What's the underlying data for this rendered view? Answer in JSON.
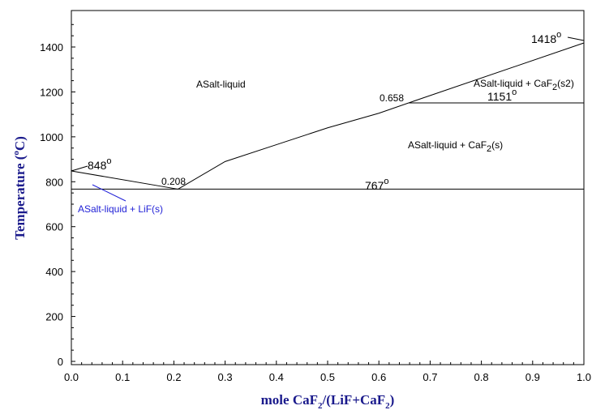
{
  "chart_data": {
    "type": "line",
    "xlabel": {
      "pre": "mole CaF",
      "sub1": "2",
      "mid": "/(LiF+CaF",
      "sub2": "2",
      "post": ")"
    },
    "ylabel": {
      "pre": "Temperature (",
      "sup": "o",
      "post": "C)"
    },
    "xlim": [
      0,
      1.0
    ],
    "ylim": [
      0,
      1500
    ],
    "x_ticks": [
      "0.0",
      "0.1",
      "0.2",
      "0.3",
      "0.4",
      "0.5",
      "0.6",
      "0.7",
      "0.8",
      "0.9",
      "1.0"
    ],
    "y_ticks": [
      "0",
      "200",
      "400",
      "600",
      "800",
      "1000",
      "1200",
      "1400"
    ],
    "grid": false,
    "series": [
      {
        "x": [
          0.0,
          0.208
        ],
        "y": [
          848,
          767
        ]
      },
      {
        "x": [
          0.208,
          0.3,
          0.4,
          0.5,
          0.6,
          0.658
        ],
        "y": [
          767,
          890,
          965,
          1040,
          1105,
          1151
        ]
      },
      {
        "x": [
          0.658,
          1.0
        ],
        "y": [
          1151,
          1418
        ]
      },
      {
        "x": [
          0.0,
          1.0
        ],
        "y": [
          767,
          767
        ]
      },
      {
        "x": [
          0.658,
          1.0
        ],
        "y": [
          1151,
          1151
        ]
      }
    ],
    "annotations": {
      "t848": "848",
      "t767": "767",
      "t1151": "1151",
      "t1418": "1418",
      "eutectic": "0.208",
      "peritectic": "0.658",
      "region_liquid": "ASalt-liquid",
      "region_lif": "ASalt-liquid + LiF(s)",
      "region_caf2_pre": "ASalt-liquid + CaF",
      "region_caf2_sub": "2",
      "region_caf2_post": "(s)",
      "region_caf2s2_pre": "ASalt-liquid + CaF",
      "region_caf2s2_sub": "2",
      "region_caf2s2_post": "(s2)",
      "degree": "o"
    }
  }
}
